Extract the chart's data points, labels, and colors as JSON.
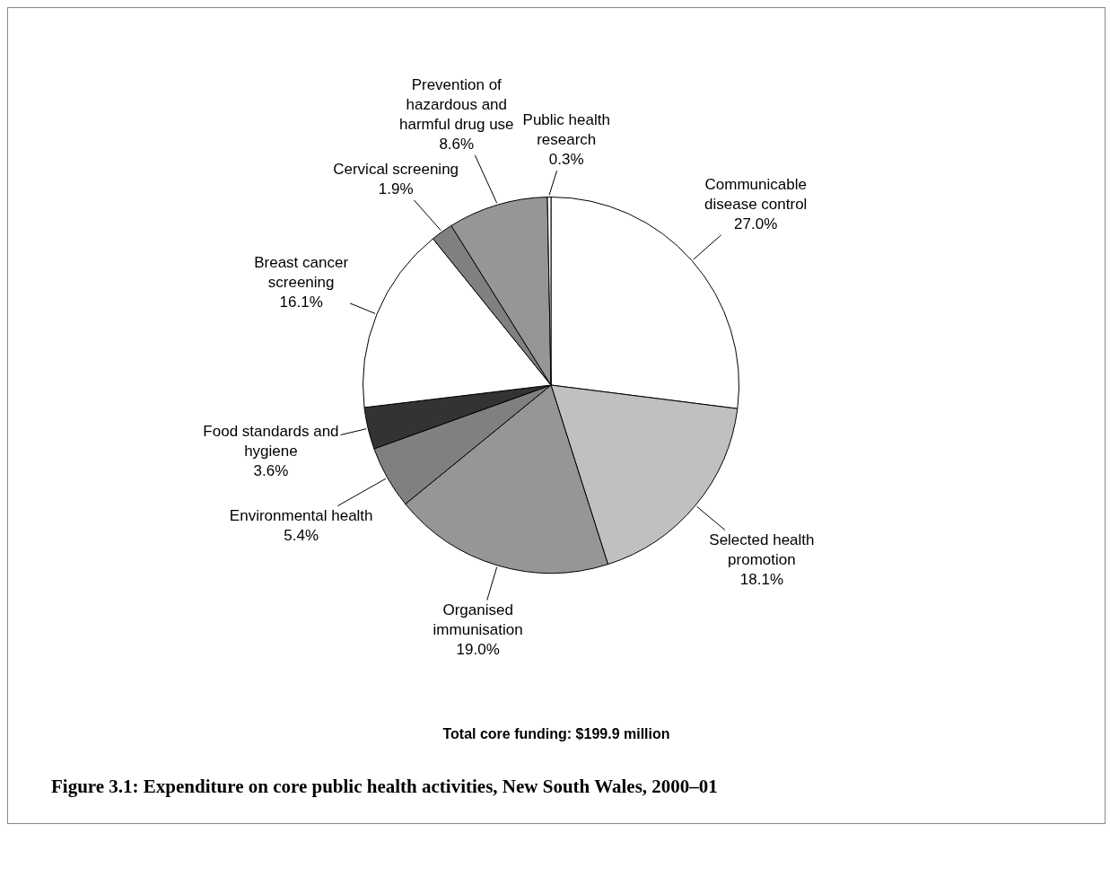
{
  "chart_data": {
    "type": "pie",
    "title": "Figure 3.1: Expenditure on core public health activities, New South Wales, 2000–01",
    "categories": [
      "Communicable disease control",
      "Selected health promotion",
      "Organised immunisation",
      "Environmental health",
      "Food standards and hygiene",
      "Breast cancer screening",
      "Cervical screening",
      "Prevention of hazardous and harmful drug use",
      "Public health research"
    ],
    "values": [
      27.0,
      18.1,
      19.0,
      5.4,
      3.6,
      16.1,
      1.9,
      8.6,
      0.3
    ],
    "colors": [
      "#ffffff",
      "#c0c0c0",
      "#969696",
      "#808080",
      "#333333",
      "#ffffff",
      "#808080",
      "#969696",
      "#ffffff"
    ],
    "value_labels": [
      "27.0%",
      "18.1%",
      "19.0%",
      "5.4%",
      "3.6%",
      "16.1%",
      "1.9%",
      "8.6%",
      "0.3%"
    ],
    "legend": false,
    "annotations": [
      "Total core funding: $199.9 million"
    ]
  }
}
